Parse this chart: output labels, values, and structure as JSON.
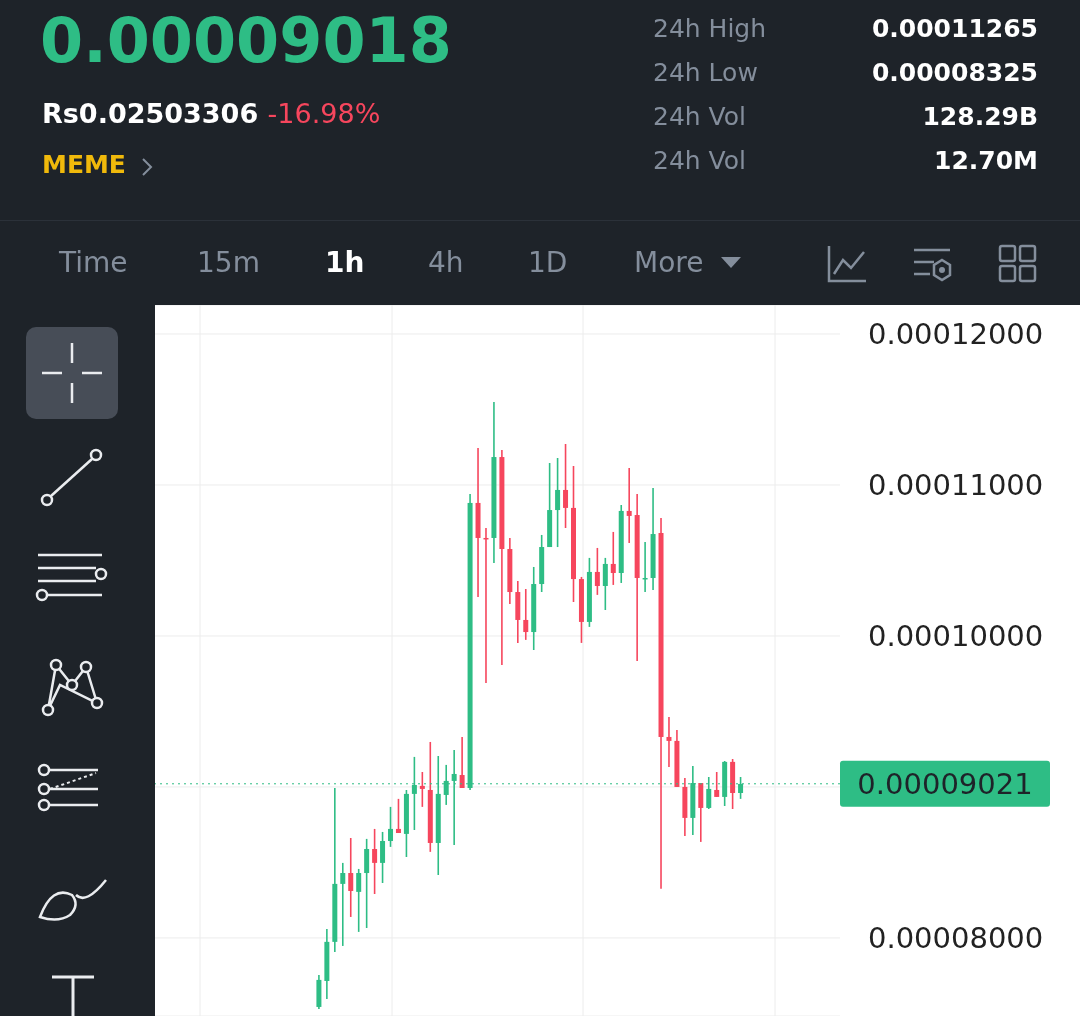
{
  "chart_data": {
    "type": "candlestick",
    "title": "0.00009018",
    "annotations": [
      "Rs0.02503306",
      "-16.98%",
      "MEME",
      "24h High",
      "0.00011265",
      "24h Low",
      "0.00008325",
      "24h Vol",
      "128.29B",
      "24h Vol",
      "12.70M",
      "Time",
      "15m",
      "1h",
      "4h",
      "1D",
      "More"
    ],
    "categories": [
      null,
      null,
      null,
      null,
      null,
      null,
      null,
      null,
      null,
      null,
      null,
      null,
      null,
      null,
      null,
      null,
      null,
      null,
      null,
      null,
      null,
      null,
      null,
      null,
      null,
      null,
      null,
      null,
      null,
      null,
      null,
      null,
      null,
      null,
      null,
      null,
      null,
      null,
      null,
      null,
      null,
      null,
      null,
      null,
      null,
      null,
      null,
      null,
      null,
      null,
      null,
      null,
      null,
      null,
      null,
      null
    ],
    "ohlc": [
      null,
      null,
      [
        7.543e-05,
        7.755e-05,
        7.53e-05,
        7.722e-05
      ],
      [
        7.715e-05,
        8.06e-05,
        7.596e-05,
        7.974e-05
      ],
      [
        7.974e-05,
        8.993e-05,
        7.907e-05,
        8.358e-05
      ],
      [
        8.358e-05,
        8.497e-05,
        7.947e-05,
        8.43e-05
      ],
      [
        8.43e-05,
        8.662e-05,
        8.139e-05,
        8.311e-05
      ],
      [
        8.305e-05,
        8.457e-05,
        8.04e-05,
        8.43e-05
      ],
      [
        8.43e-05,
        8.656e-05,
        8.066e-05,
        8.589e-05
      ],
      [
        8.589e-05,
        8.722e-05,
        8.291e-05,
        8.497e-05
      ],
      [
        8.497e-05,
        8.702e-05,
        8.364e-05,
        8.642e-05
      ],
      [
        8.642e-05,
        8.868e-05,
        8.603e-05,
        8.722e-05
      ],
      [
        8.722e-05,
        8.921e-05,
        8.695e-05,
        8.695e-05
      ],
      [
        8.689e-05,
        8.98e-05,
        8.536e-05,
        8.954e-05
      ],
      [
        8.954e-05,
        9.199e-05,
        8.715e-05,
        9.013e-05
      ],
      [
        9.007e-05,
        9.099e-05,
        8.868e-05,
        8.987e-05
      ],
      [
        8.98e-05,
        9.298e-05,
        8.57e-05,
        8.629e-05
      ],
      [
        8.629e-05,
        9.205e-05,
        8.417e-05,
        8.954e-05
      ],
      [
        8.947e-05,
        9.146e-05,
        8.881e-05,
        9.04e-05
      ],
      [
        9.04e-05,
        9.245e-05,
        8.616e-05,
        9.086e-05
      ],
      [
        9.079e-05,
        9.331e-05,
        8.993e-05,
        8.993e-05
      ],
      [
        8.993e-05,
        0.0001094,
        8.98e-05,
        0.00010881
      ],
      [
        0.00010881,
        0.00011245,
        0.00010258,
        0.00010649
      ],
      [
        0.00010649,
        0.00010715,
        9.689e-05,
        0.00010642
      ],
      [
        0.00010649,
        0.0001155,
        0.00010483,
        0.00011185
      ],
      [
        0.00011185,
        0.00011232,
        9.808e-05,
        0.00010576
      ],
      [
        0.00010576,
        0.00010649,
        0.00010212,
        0.00010291
      ],
      [
        0.00010291,
        0.00010364,
        9.954e-05,
        0.00010106
      ],
      [
        0.00010106,
        0.00010311,
        9.974e-05,
        0.00010026
      ],
      [
        0.00010026,
        0.00010457,
        9.907e-05,
        0.00010344
      ],
      [
        0.00010344,
        0.00010669,
        0.00010291,
        0.00010589
      ],
      [
        0.00010589,
        0.00011146,
        0.00010589,
        0.00010834
      ],
      [
        0.00010834,
        0.00011179,
        0.00010589,
        0.00010967
      ],
      [
        0.00010967,
        0.00011272,
        0.00010715,
        0.00010848
      ],
      [
        0.00010848,
        0.00011126,
        0.00010225,
        0.00010377
      ],
      [
        0.00010377,
        0.00010391,
        9.954e-05,
        0.00010093
      ],
      [
        0.00010093,
        0.00010517,
        0.0001006,
        0.00010424
      ],
      [
        0.00010424,
        0.00010583,
        0.00010272,
        0.00010331
      ],
      [
        0.00010331,
        0.00010517,
        0.00010172,
        0.00010477
      ],
      [
        0.00010477,
        0.00010689,
        0.00010338,
        0.00010417
      ],
      [
        0.00010417,
        0.00010868,
        0.00010351,
        0.00010828
      ],
      [
        0.00010828,
        0.00011113,
        0.00010616,
        0.00010795
      ],
      [
        0.00010801,
        0.0001094,
        9.834e-05,
        0.00010384
      ],
      [
        0.00010377,
        0.00010623,
        0.00010291,
        0.00010384
      ],
      [
        0.00010384,
        0.0001098,
        0.00010305,
        0.00010675
      ],
      [
        0.00010682,
        0.00010781,
        8.325e-05,
        9.331e-05
      ],
      [
        9.331e-05,
        9.464e-05,
        9.132e-05,
        9.305e-05
      ],
      [
        9.305e-05,
        9.377e-05,
        9e-05,
        9e-05
      ],
      [
        9e-05,
        9.06e-05,
        8.675e-05,
        8.795e-05
      ],
      [
        8.795e-05,
        9.139e-05,
        8.682e-05,
        9.026e-05
      ],
      [
        9.026e-05,
        9.026e-05,
        8.636e-05,
        8.861e-05
      ],
      [
        8.861e-05,
        9.066e-05,
        8.854e-05,
        8.987e-05
      ],
      [
        8.98e-05,
        9.099e-05,
        8.934e-05,
        8.934e-05
      ],
      [
        8.934e-05,
        9.172e-05,
        8.874e-05,
        9.166e-05
      ],
      [
        9.166e-05,
        9.185e-05,
        8.854e-05,
        8.96e-05
      ],
      [
        8.96e-05,
        9.066e-05,
        8.921e-05,
        9.02e-05
      ]
    ],
    "colors": [
      "#2ebd85",
      "#2ebd85",
      "#2ebd85",
      "#2ebd85",
      "#2ebd85",
      "#2ebd85",
      "#f6465d",
      "#2ebd85",
      "#2ebd85",
      "#f6465d",
      "#2ebd85",
      "#2ebd85",
      "#f6465d",
      "#2ebd85",
      "#2ebd85",
      "#f6465d",
      "#f6465d",
      "#2ebd85",
      "#2ebd85",
      "#2ebd85",
      "#f6465d",
      "#2ebd85",
      "#f6465d",
      "#f6465d",
      "#2ebd85",
      "#f6465d",
      "#f6465d",
      "#f6465d",
      "#f6465d",
      "#2ebd85",
      "#2ebd85",
      "#2ebd85",
      "#2ebd85",
      "#f6465d",
      "#f6465d",
      "#f6465d",
      "#2ebd85",
      "#f6465d",
      "#2ebd85",
      "#f6465d",
      "#2ebd85",
      "#f6465d",
      "#f6465d",
      "#2ebd85",
      "#2ebd85",
      "#f6465d",
      "#f6465d",
      "#f6465d",
      "#f6465d",
      "#2ebd85",
      "#f6465d",
      "#2ebd85",
      "#f6465d",
      "#2ebd85",
      "#f6465d",
      "#2ebd85"
    ],
    "ylim": [
      7.483e-05,
      0.00012192
    ],
    "yticks": [
      {
        "value": 8e-05,
        "label": "0.00008000"
      },
      {
        "value": 9e-05,
        "label": null
      },
      {
        "value": 0.0001,
        "label": "0.00010000"
      },
      {
        "value": 0.00011,
        "label": "0.00011000"
      },
      {
        "value": 0.00012,
        "label": "0.00012000"
      }
    ],
    "tick_labels": "y",
    "grid": "y",
    "ref_lines": [
      {
        "axis": "y",
        "value": 9.021e-05,
        "label": "0.00009021",
        "color": "#2ebd85",
        "line_style": "dotted"
      }
    ]
  }
}
